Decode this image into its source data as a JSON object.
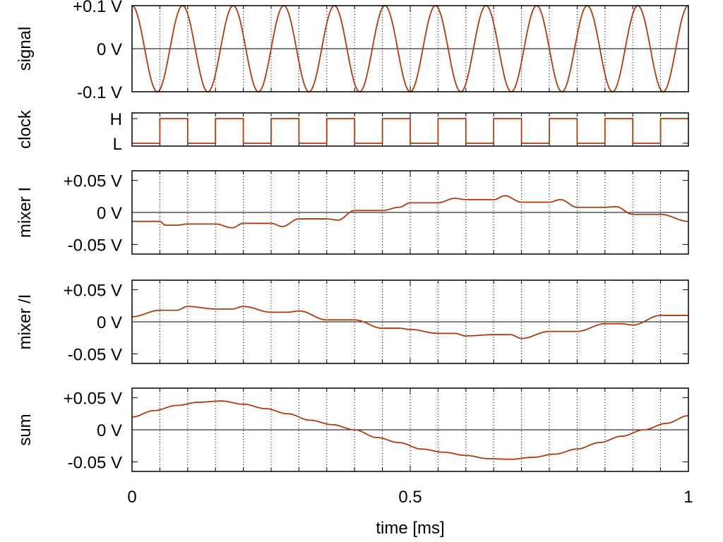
{
  "chart_data": {
    "type": "line",
    "x_axis": {
      "label": "time [ms]",
      "range": [
        0,
        1
      ],
      "ticks": [
        0,
        0.5,
        1
      ],
      "tick_labels": [
        "0",
        "0.5",
        "1"
      ],
      "minor_grid_step": 0.05,
      "grid": "dotted vertical"
    },
    "line_color": "#b03a10",
    "panels": [
      {
        "ylabel": "signal",
        "ylim": [
          -0.1,
          0.1
        ],
        "yticks": [
          0.1,
          0,
          -0.1
        ],
        "ytick_labels": [
          "+0.1 V",
          "0 V",
          "-0.1 V"
        ],
        "series": {
          "kind": "sine",
          "amplitude": 0.1,
          "cycles_per_ms": 11,
          "x": [
            0,
            0.023,
            0.045,
            0.068,
            0.091,
            0.114,
            0.136,
            0.159,
            0.182,
            0.205,
            0.227,
            0.25,
            0.273,
            0.295,
            0.318,
            0.341,
            0.364,
            0.386,
            0.409,
            0.432,
            0.455,
            0.477,
            0.5,
            0.523,
            0.545,
            0.568,
            0.591,
            0.614,
            0.636,
            0.659,
            0.682,
            0.705,
            0.727,
            0.75,
            0.773,
            0.795,
            0.818,
            0.841,
            0.864,
            0.886,
            0.909,
            0.932,
            0.955,
            0.977,
            1
          ],
          "y": [
            0.1,
            0,
            -0.1,
            0,
            0.1,
            0,
            -0.1,
            0,
            0.1,
            0,
            -0.1,
            0,
            0.1,
            0,
            -0.1,
            0,
            0.1,
            0,
            -0.1,
            0,
            0.1,
            0,
            -0.1,
            0,
            0.1,
            0,
            -0.1,
            0,
            0.1,
            0,
            -0.1,
            0,
            0.1,
            0,
            -0.1,
            0,
            0.1,
            0,
            -0.1,
            0,
            0.1,
            0,
            -0.1,
            0,
            0.1
          ]
        }
      },
      {
        "ylabel": "clock",
        "ylim": [
          "L",
          "H"
        ],
        "yticks": [
          "H",
          "L"
        ],
        "ytick_labels": [
          "H",
          "L"
        ],
        "series": {
          "kind": "square",
          "edges_ms": [
            0.05,
            0.1,
            0.15,
            0.2,
            0.25,
            0.3,
            0.35,
            0.4,
            0.45,
            0.5,
            0.55,
            0.6,
            0.65,
            0.7,
            0.75,
            0.8,
            0.85,
            0.9,
            0.95
          ],
          "levels": [
            "L",
            "H",
            "L",
            "H",
            "L",
            "H",
            "L",
            "H",
            "L",
            "H",
            "L",
            "H",
            "L",
            "H",
            "L",
            "H",
            "L",
            "H",
            "L",
            "H"
          ]
        }
      },
      {
        "ylabel": "mixer I",
        "ylim": [
          -0.065,
          0.065
        ],
        "yticks": [
          0.05,
          0,
          -0.05
        ],
        "ytick_labels": [
          "+0.05 V",
          "0 V",
          "-0.05 V"
        ],
        "series": {
          "kind": "piecewise",
          "x": [
            0,
            0.05,
            0.06,
            0.08,
            0.1,
            0.15,
            0.18,
            0.2,
            0.25,
            0.27,
            0.3,
            0.35,
            0.37,
            0.4,
            0.45,
            0.48,
            0.5,
            0.55,
            0.58,
            0.6,
            0.65,
            0.67,
            0.7,
            0.75,
            0.77,
            0.8,
            0.85,
            0.87,
            0.9,
            0.95,
            1
          ],
          "y": [
            -0.014,
            -0.014,
            -0.02,
            -0.02,
            -0.018,
            -0.018,
            -0.024,
            -0.017,
            -0.017,
            -0.022,
            -0.01,
            -0.01,
            -0.012,
            0.003,
            0.003,
            0.008,
            0.015,
            0.015,
            0.022,
            0.02,
            0.02,
            0.026,
            0.016,
            0.016,
            0.02,
            0.008,
            0.008,
            0.009,
            -0.003,
            -0.003,
            -0.014
          ]
        }
      },
      {
        "ylabel": "mixer /I",
        "ylim": [
          -0.065,
          0.065
        ],
        "yticks": [
          0.05,
          0,
          -0.05
        ],
        "ytick_labels": [
          "+0.05 V",
          "0 V",
          "-0.05 V"
        ],
        "series": {
          "kind": "piecewise",
          "x": [
            0,
            0.05,
            0.08,
            0.1,
            0.15,
            0.18,
            0.2,
            0.25,
            0.28,
            0.3,
            0.35,
            0.38,
            0.4,
            0.45,
            0.48,
            0.5,
            0.55,
            0.58,
            0.6,
            0.65,
            0.68,
            0.7,
            0.75,
            0.78,
            0.8,
            0.85,
            0.88,
            0.9,
            0.95,
            1
          ],
          "y": [
            0.008,
            0.018,
            0.018,
            0.024,
            0.02,
            0.02,
            0.024,
            0.015,
            0.015,
            0.017,
            0.003,
            0.003,
            0.003,
            -0.01,
            -0.01,
            -0.012,
            -0.018,
            -0.018,
            -0.022,
            -0.02,
            -0.02,
            -0.026,
            -0.015,
            -0.015,
            -0.015,
            -0.003,
            -0.003,
            -0.005,
            0.01,
            0.01
          ]
        }
      },
      {
        "ylabel": "sum",
        "ylim": [
          -0.065,
          0.065
        ],
        "yticks": [
          0.05,
          0,
          -0.05
        ],
        "ytick_labels": [
          "+0.05 V",
          "0 V",
          "-0.05 V"
        ],
        "series": {
          "kind": "piecewise",
          "x": [
            0,
            0.04,
            0.08,
            0.12,
            0.16,
            0.2,
            0.24,
            0.28,
            0.32,
            0.36,
            0.4,
            0.44,
            0.48,
            0.52,
            0.56,
            0.6,
            0.64,
            0.68,
            0.72,
            0.76,
            0.8,
            0.84,
            0.88,
            0.92,
            0.96,
            1
          ],
          "y": [
            0.02,
            0.03,
            0.038,
            0.043,
            0.045,
            0.04,
            0.033,
            0.025,
            0.015,
            0.008,
            0.0,
            -0.012,
            -0.02,
            -0.03,
            -0.035,
            -0.04,
            -0.045,
            -0.046,
            -0.043,
            -0.038,
            -0.03,
            -0.02,
            -0.01,
            0.0,
            0.01,
            0.022
          ]
        }
      }
    ]
  }
}
